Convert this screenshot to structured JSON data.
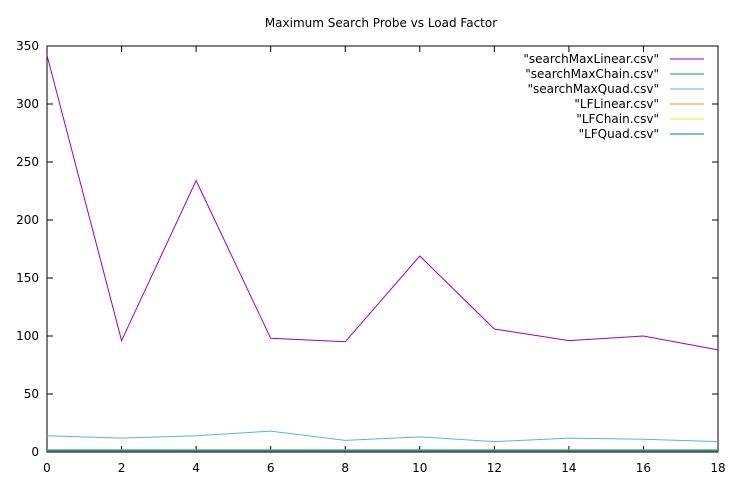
{
  "chart_data": {
    "type": "line",
    "title": "Maximum Search Probe vs Load Factor",
    "xlabel": "",
    "ylabel": "",
    "xlim": [
      0,
      18
    ],
    "ylim": [
      0,
      350
    ],
    "x_ticks": [
      "0",
      "2",
      "4",
      "6",
      "8",
      "10",
      "12",
      "14",
      "16",
      "18"
    ],
    "y_ticks": [
      "0",
      "50",
      "100",
      "150",
      "200",
      "250",
      "300",
      "350"
    ],
    "x": [
      0,
      2,
      4,
      6,
      8,
      10,
      12,
      14,
      16,
      18
    ],
    "grid": false,
    "legend_position": "top-right",
    "series": [
      {
        "name": "\"searchMaxLinear.csv\"",
        "color": "#9400d3",
        "values": [
          342,
          96,
          234,
          98,
          95,
          169,
          106,
          96,
          100,
          88
        ]
      },
      {
        "name": "\"searchMaxChain.csv\"",
        "color": "#009e73",
        "values": [
          2,
          2,
          2,
          2,
          2,
          2,
          2,
          2,
          2,
          2
        ]
      },
      {
        "name": "\"searchMaxQuad.csv\"",
        "color": "#56b4e9",
        "values": [
          14,
          12,
          14,
          18,
          10,
          13,
          9,
          12,
          11,
          9
        ]
      },
      {
        "name": "\"LFLinear.csv\"",
        "color": "#e69f00",
        "values": [
          1,
          1,
          1,
          1,
          1,
          1,
          1,
          1,
          1,
          1
        ]
      },
      {
        "name": "\"LFChain.csv\"",
        "color": "#f0e442",
        "values": [
          1.5,
          1.5,
          1.5,
          1.5,
          1.5,
          1.5,
          1.5,
          1.5,
          1.5,
          1.5
        ]
      },
      {
        "name": "\"LFQuad.csv\"",
        "color": "#0072b2",
        "values": [
          1,
          1,
          1,
          1,
          1,
          1,
          1,
          1,
          1,
          1
        ]
      }
    ]
  }
}
